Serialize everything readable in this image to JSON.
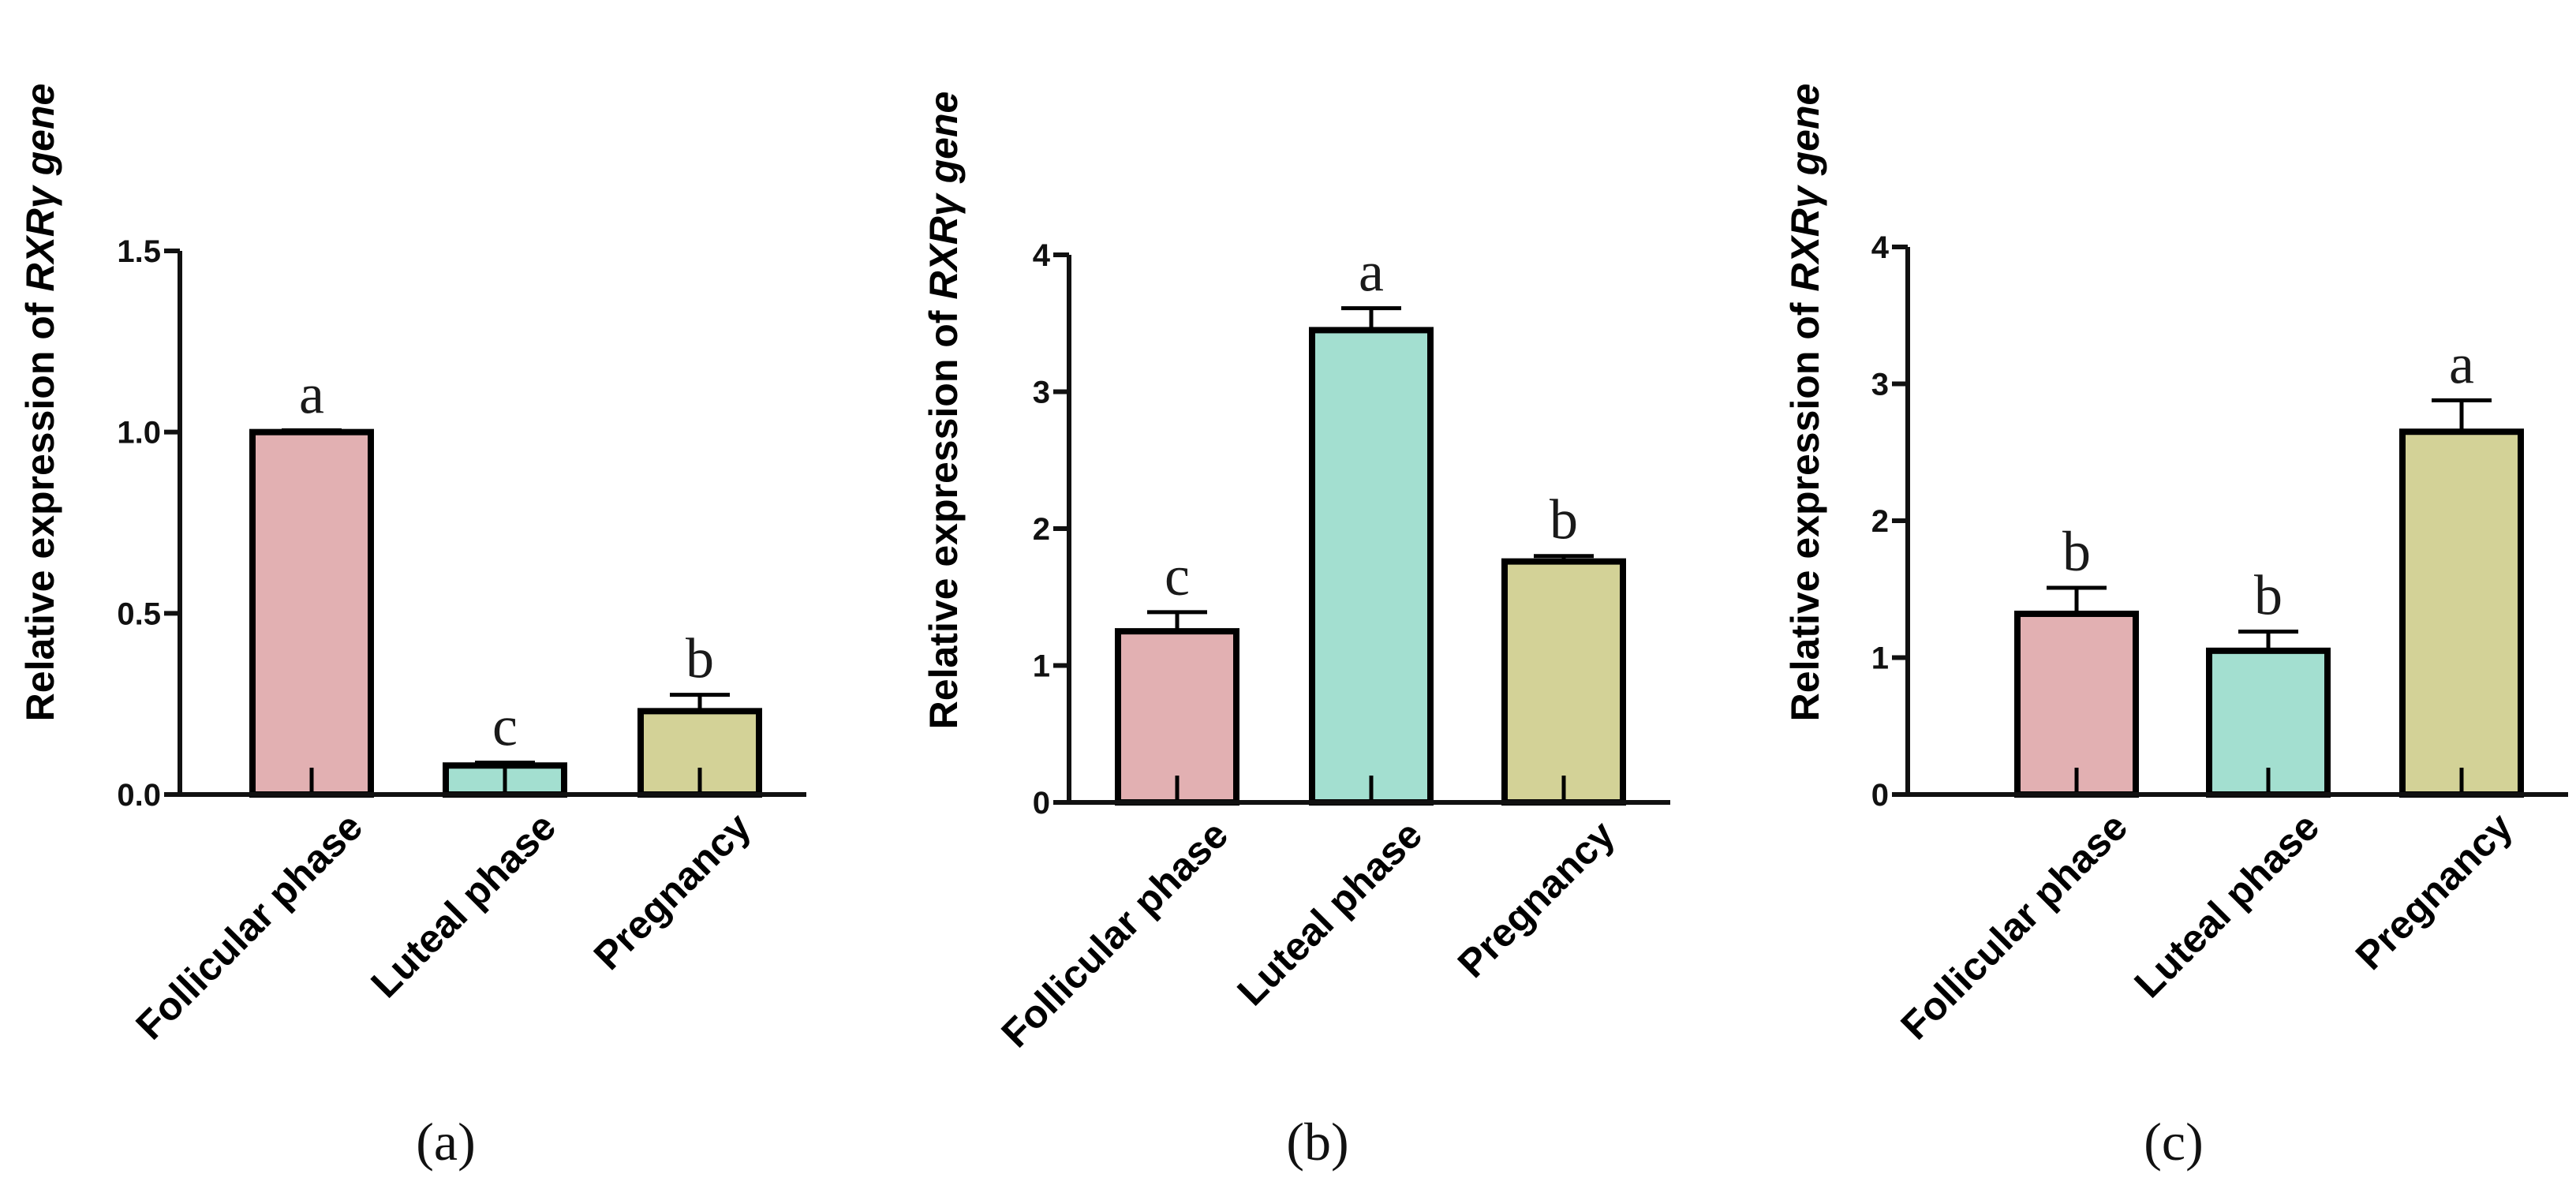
{
  "figure": {
    "background": "#ffffff"
  },
  "chart_data": [
    {
      "type": "bar",
      "panel": "(a)",
      "categories": [
        "Follicular phase",
        "Luteal phase",
        "Pregnancy"
      ],
      "values": [
        1.0,
        0.08,
        0.23
      ],
      "errors": [
        0.005,
        0.008,
        0.045
      ],
      "letters": [
        "a",
        "c",
        "b"
      ],
      "colors": [
        "#e2b0b2",
        "#a3dfd0",
        "#d3d297"
      ],
      "ylabel_prefix": "Relative expression of ",
      "ylabel_gene": "RXRγ gene",
      "ylim": [
        0,
        1.5
      ],
      "yticks": [
        0.0,
        0.5,
        1.0,
        1.5
      ],
      "ytick_labels": [
        "0.0",
        "0.5",
        "1.0",
        "1.5"
      ]
    },
    {
      "type": "bar",
      "panel": "(b)",
      "categories": [
        "Follicular phase",
        "Luteal phase",
        "Pregnancy"
      ],
      "values": [
        1.25,
        3.45,
        1.76
      ],
      "errors": [
        0.14,
        0.16,
        0.04
      ],
      "letters": [
        "c",
        "a",
        "b"
      ],
      "colors": [
        "#e2b0b2",
        "#a3dfd0",
        "#d3d297"
      ],
      "ylabel_prefix": "Relative expression of ",
      "ylabel_gene": "RXRγ gene",
      "ylim": [
        0,
        4
      ],
      "yticks": [
        0,
        1,
        2,
        3,
        4
      ],
      "ytick_labels": [
        "0",
        "1",
        "2",
        "3",
        "4"
      ]
    },
    {
      "type": "bar",
      "panel": "(c)",
      "categories": [
        "Follicular phase",
        "Luteal phase",
        "Pregnancy"
      ],
      "values": [
        1.32,
        1.05,
        2.65
      ],
      "errors": [
        0.19,
        0.14,
        0.23
      ],
      "letters": [
        "b",
        "b",
        "a"
      ],
      "colors": [
        "#e2b0b2",
        "#a3dfd0",
        "#d3d297"
      ],
      "ylabel_prefix": "Relative expression of ",
      "ylabel_gene": "RXRγ gene",
      "ylim": [
        0,
        4
      ],
      "yticks": [
        0,
        1,
        2,
        3,
        4
      ],
      "ytick_labels": [
        "0",
        "1",
        "2",
        "3",
        "4"
      ]
    }
  ]
}
